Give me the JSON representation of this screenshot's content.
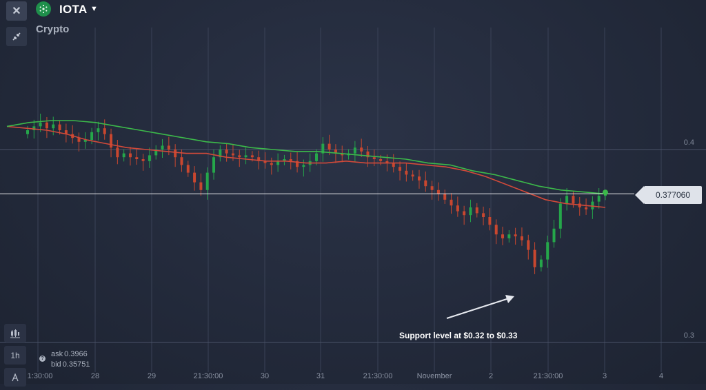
{
  "header": {
    "asset_name": "IOTA",
    "asset_category": "Crypto",
    "close_icon": "close-icon",
    "collapse_icon": "collapse-arrows-icon",
    "dropdown_icon": "caret-down-icon"
  },
  "tools": {
    "chart_type_icon": "candles-icon",
    "timeframe": "1h",
    "draw_icon": "drawing-tool-icon"
  },
  "quote": {
    "ask_label": "ask",
    "ask_value": "0.3966",
    "bid_label": "bid",
    "bid_value": "0.35751"
  },
  "current_price": "0.377060",
  "annotation": "Support level at $0.32 to $0.33",
  "colors": {
    "up": "#25a64a",
    "down": "#c9472f",
    "ma_fast": "#d24a3a",
    "ma_slow": "#3cb94a",
    "price_line": "#ffffff",
    "grid": "#3a4257"
  },
  "chart_data": {
    "type": "candlestick",
    "title": "",
    "xlabel": "",
    "ylabel": "",
    "ylim": [
      0.286,
      0.43
    ],
    "y_ticks": [
      "0.4",
      "0.3"
    ],
    "x_ticks": [
      "1:30:00",
      "28",
      "29",
      "21:30:00",
      "30",
      "31",
      "21:30:00",
      "November",
      "2",
      "21:30:00",
      "3",
      "4"
    ],
    "current_price": 0.37706,
    "series": [
      {
        "name": "",
        "role": "close",
        "values": [
          0.41,
          0.412,
          0.414,
          0.411,
          0.413,
          0.41,
          0.408,
          0.406,
          0.404,
          0.405,
          0.409,
          0.411,
          0.408,
          0.401,
          0.396,
          0.398,
          0.396,
          0.395,
          0.394,
          0.397,
          0.4,
          0.402,
          0.4,
          0.396,
          0.392,
          0.388,
          0.383,
          0.379,
          0.388,
          0.396,
          0.4,
          0.398,
          0.397,
          0.396,
          0.397,
          0.396,
          0.394,
          0.393,
          0.392,
          0.394,
          0.395,
          0.394,
          0.391,
          0.392,
          0.394,
          0.398,
          0.403,
          0.4,
          0.398,
          0.397,
          0.398,
          0.401,
          0.399,
          0.396,
          0.395,
          0.394,
          0.393,
          0.391,
          0.389,
          0.387,
          0.386,
          0.384,
          0.381,
          0.379,
          0.377,
          0.374,
          0.371,
          0.368,
          0.366,
          0.37,
          0.367,
          0.365,
          0.361,
          0.356,
          0.354,
          0.356,
          0.355,
          0.353,
          0.348,
          0.339,
          0.343,
          0.352,
          0.359,
          0.372,
          0.376,
          0.372,
          0.37,
          0.369,
          0.373,
          0.376,
          0.377
        ]
      },
      {
        "name": "",
        "role": "moving-average-fast",
        "values": [
          0.412,
          0.411,
          0.41,
          0.408,
          0.405,
          0.403,
          0.401,
          0.4,
          0.399,
          0.398,
          0.398,
          0.396,
          0.395,
          0.394,
          0.394,
          0.393,
          0.393,
          0.394,
          0.393,
          0.393,
          0.393,
          0.392,
          0.391,
          0.389,
          0.386,
          0.382,
          0.378,
          0.374,
          0.372,
          0.371,
          0.37
        ]
      },
      {
        "name": "",
        "role": "moving-average-slow",
        "values": [
          0.412,
          0.414,
          0.415,
          0.415,
          0.414,
          0.412,
          0.41,
          0.408,
          0.406,
          0.404,
          0.403,
          0.401,
          0.4,
          0.399,
          0.399,
          0.398,
          0.397,
          0.396,
          0.395,
          0.393,
          0.392,
          0.389,
          0.387,
          0.384,
          0.381,
          0.379,
          0.378,
          0.377
        ]
      }
    ]
  }
}
